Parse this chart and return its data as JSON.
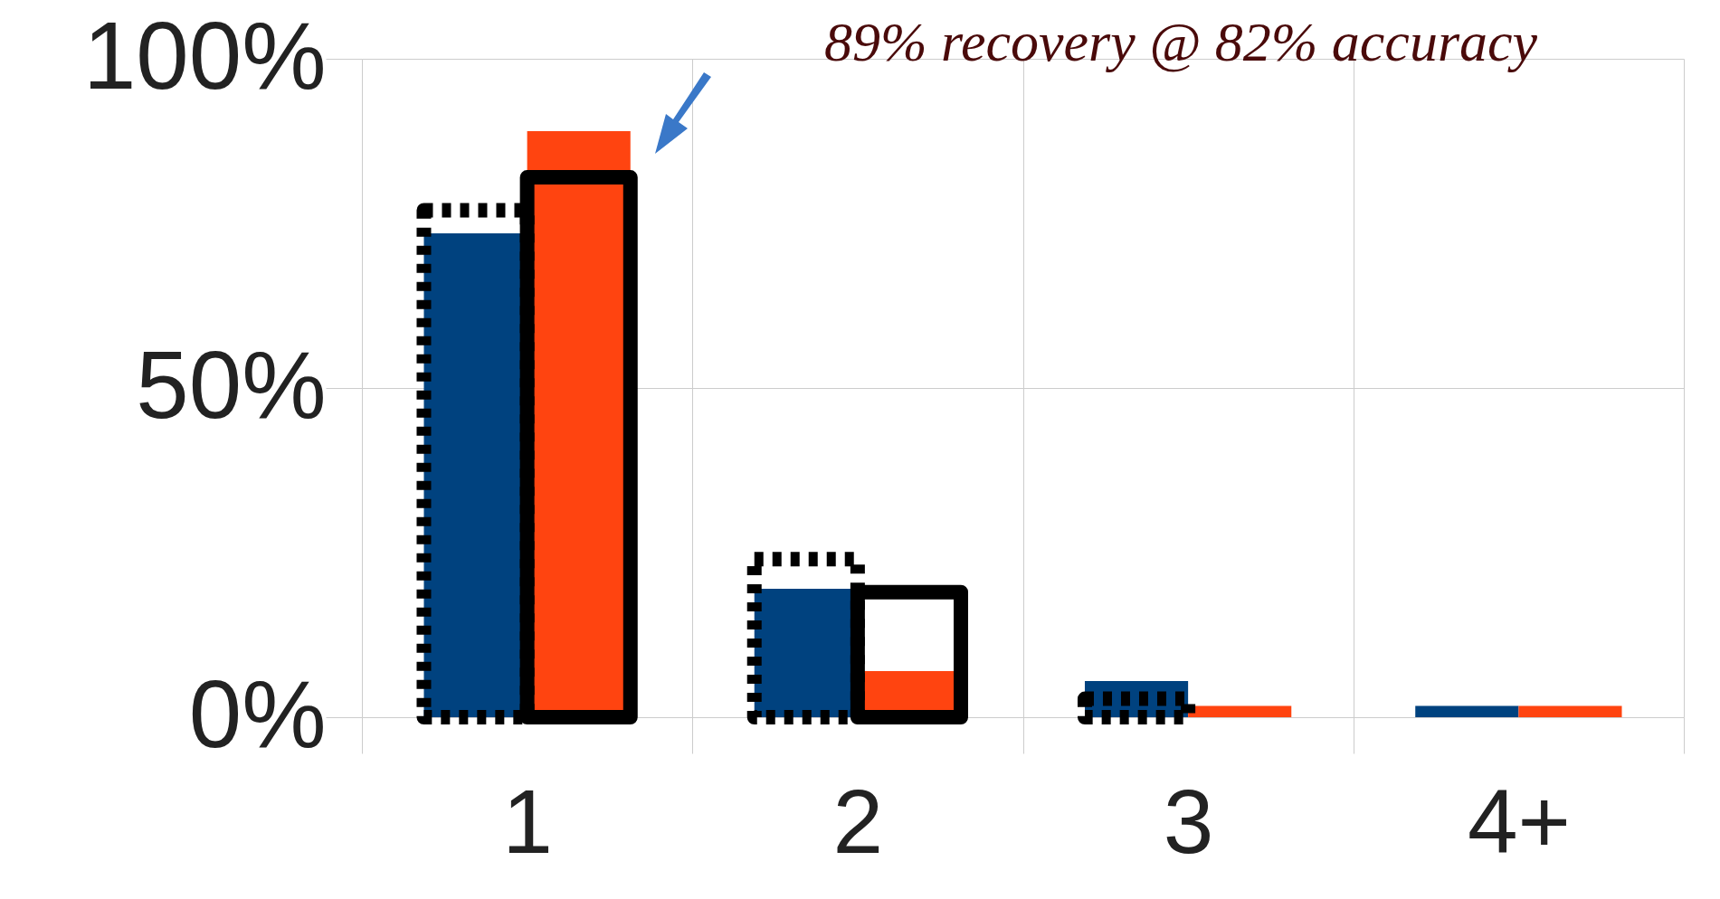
{
  "chart_data": {
    "type": "bar",
    "categories": [
      "1",
      "2",
      "3",
      "4+"
    ],
    "series": [
      {
        "color": "#00427f",
        "values": [
          73.5,
          19.5,
          5.5,
          1.7
        ]
      },
      {
        "color": "#ff4410",
        "values": [
          89,
          7,
          1.7,
          1.7
        ]
      },
      {
        "color": "#000000",
        "line_style": "dotted",
        "values": [
          77,
          24,
          2.8,
          null
        ]
      },
      {
        "color": "#000000",
        "line_style": "solid",
        "values": [
          82,
          19,
          null,
          null
        ]
      }
    ],
    "ylim": [
      0,
      100
    ],
    "yticks": [
      {
        "value": 0,
        "label": "0%"
      },
      {
        "value": 50,
        "label": "50%"
      },
      {
        "value": 100,
        "label": "100%"
      }
    ],
    "grid": true,
    "legend": false,
    "annotations": [
      "89% recovery @ 82% accuracy"
    ]
  }
}
